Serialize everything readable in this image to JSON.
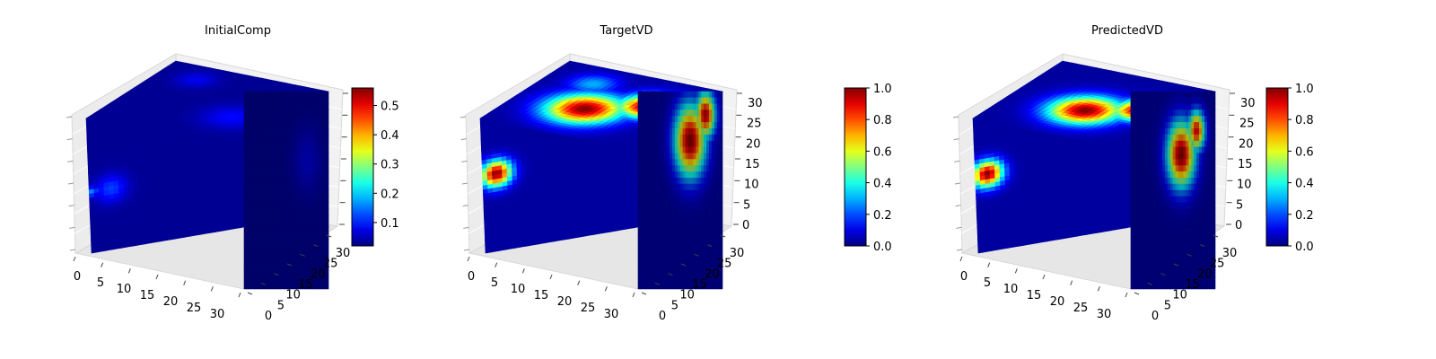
{
  "chart_data": [
    {
      "type": "heatmap",
      "style": "3d-voxel-cube",
      "title": "InitialComp",
      "colormap": "jet",
      "axes": {
        "x": {
          "ticks": [
            "0",
            "5",
            "10",
            "15",
            "20",
            "25",
            "30"
          ],
          "range": [
            0,
            32
          ]
        },
        "y": {
          "ticks": [
            "0",
            "5",
            "10",
            "15",
            "20",
            "25",
            "30"
          ],
          "range": [
            0,
            32
          ]
        },
        "z": {
          "ticks": [],
          "range": [
            0,
            32
          ]
        }
      },
      "colorbar": {
        "range": [
          0.02,
          0.56
        ],
        "ticks": [
          "0.1",
          "0.2",
          "0.3",
          "0.4",
          "0.5"
        ],
        "tick_values": [
          0.1,
          0.2,
          0.3,
          0.4,
          0.5
        ]
      },
      "background_value": 0.03,
      "blobs": [
        {
          "face": "front",
          "u": 0.14,
          "v": 0.55,
          "r": 0.13,
          "value": 0.12
        },
        {
          "face": "front",
          "u": 0.02,
          "v": 0.55,
          "r": 0.05,
          "value": 0.16
        },
        {
          "face": "top",
          "u": 0.25,
          "v": 0.2,
          "r": 0.15,
          "value": 0.08
        },
        {
          "face": "top",
          "u": 0.72,
          "v": 0.6,
          "r": 0.22,
          "value": 0.09
        },
        {
          "face": "top",
          "u": 0.9,
          "v": 0.3,
          "r": 0.07,
          "value": 0.5
        },
        {
          "face": "side",
          "u": 0.75,
          "v": 0.35,
          "r": 0.2,
          "value": 0.07
        }
      ]
    },
    {
      "type": "heatmap",
      "style": "3d-voxel-cube",
      "title": "TargetVD",
      "colormap": "jet",
      "axes": {
        "x": {
          "ticks": [
            "0",
            "5",
            "10",
            "15",
            "20",
            "25",
            "30"
          ],
          "range": [
            0,
            32
          ]
        },
        "y": {
          "ticks": [
            "0",
            "5",
            "10",
            "15",
            "20",
            "25",
            "30"
          ],
          "range": [
            0,
            32
          ]
        },
        "z": {
          "ticks": [
            "0",
            "5",
            "10",
            "15",
            "20",
            "25",
            "30"
          ],
          "range": [
            0,
            32
          ]
        }
      },
      "colorbar": {
        "range": [
          0,
          1
        ],
        "ticks": [
          "0.0",
          "0.2",
          "0.4",
          "0.6",
          "0.8",
          "1.0"
        ],
        "tick_values": [
          0,
          0.2,
          0.4,
          0.6,
          0.8,
          1.0
        ]
      },
      "background_value": 0.03,
      "blobs": [
        {
          "face": "front",
          "u": 0.09,
          "v": 0.43,
          "r": 0.12,
          "value": 1.0
        },
        {
          "face": "top",
          "u": 0.45,
          "v": 0.6,
          "r": 0.28,
          "value": 1.0
        },
        {
          "face": "top",
          "u": 0.75,
          "v": 0.4,
          "r": 0.22,
          "value": 1.0
        },
        {
          "face": "top",
          "u": 0.3,
          "v": 0.25,
          "r": 0.18,
          "value": 0.3
        },
        {
          "face": "side",
          "u": 0.62,
          "v": 0.25,
          "r": 0.22,
          "value": 1.0
        },
        {
          "face": "side",
          "u": 0.8,
          "v": 0.12,
          "r": 0.14,
          "value": 0.95
        }
      ]
    },
    {
      "type": "heatmap",
      "style": "3d-voxel-cube",
      "title": "PredictedVD",
      "colormap": "jet",
      "axes": {
        "x": {
          "ticks": [
            "0",
            "5",
            "10",
            "15",
            "20",
            "25",
            "30"
          ],
          "range": [
            0,
            32
          ]
        },
        "y": {
          "ticks": [
            "0",
            "5",
            "10",
            "15",
            "20",
            "25",
            "30"
          ],
          "range": [
            0,
            32
          ]
        },
        "z": {
          "ticks": [
            "0",
            "5",
            "10",
            "15",
            "20",
            "25",
            "30"
          ],
          "range": [
            0,
            32
          ]
        }
      },
      "colorbar": {
        "range": [
          0,
          1
        ],
        "ticks": [
          "0.0",
          "0.2",
          "0.4",
          "0.6",
          "0.8",
          "1.0"
        ],
        "tick_values": [
          0,
          0.2,
          0.4,
          0.6,
          0.8,
          1.0
        ]
      },
      "background_value": 0.03,
      "blobs": [
        {
          "face": "front",
          "u": 0.08,
          "v": 0.43,
          "r": 0.12,
          "value": 1.0
        },
        {
          "face": "top",
          "u": 0.5,
          "v": 0.6,
          "r": 0.26,
          "value": 1.0
        },
        {
          "face": "top",
          "u": 0.78,
          "v": 0.45,
          "r": 0.2,
          "value": 1.0
        },
        {
          "face": "side",
          "u": 0.6,
          "v": 0.32,
          "r": 0.2,
          "value": 1.0
        },
        {
          "face": "side",
          "u": 0.78,
          "v": 0.2,
          "r": 0.12,
          "value": 0.9
        }
      ]
    }
  ]
}
